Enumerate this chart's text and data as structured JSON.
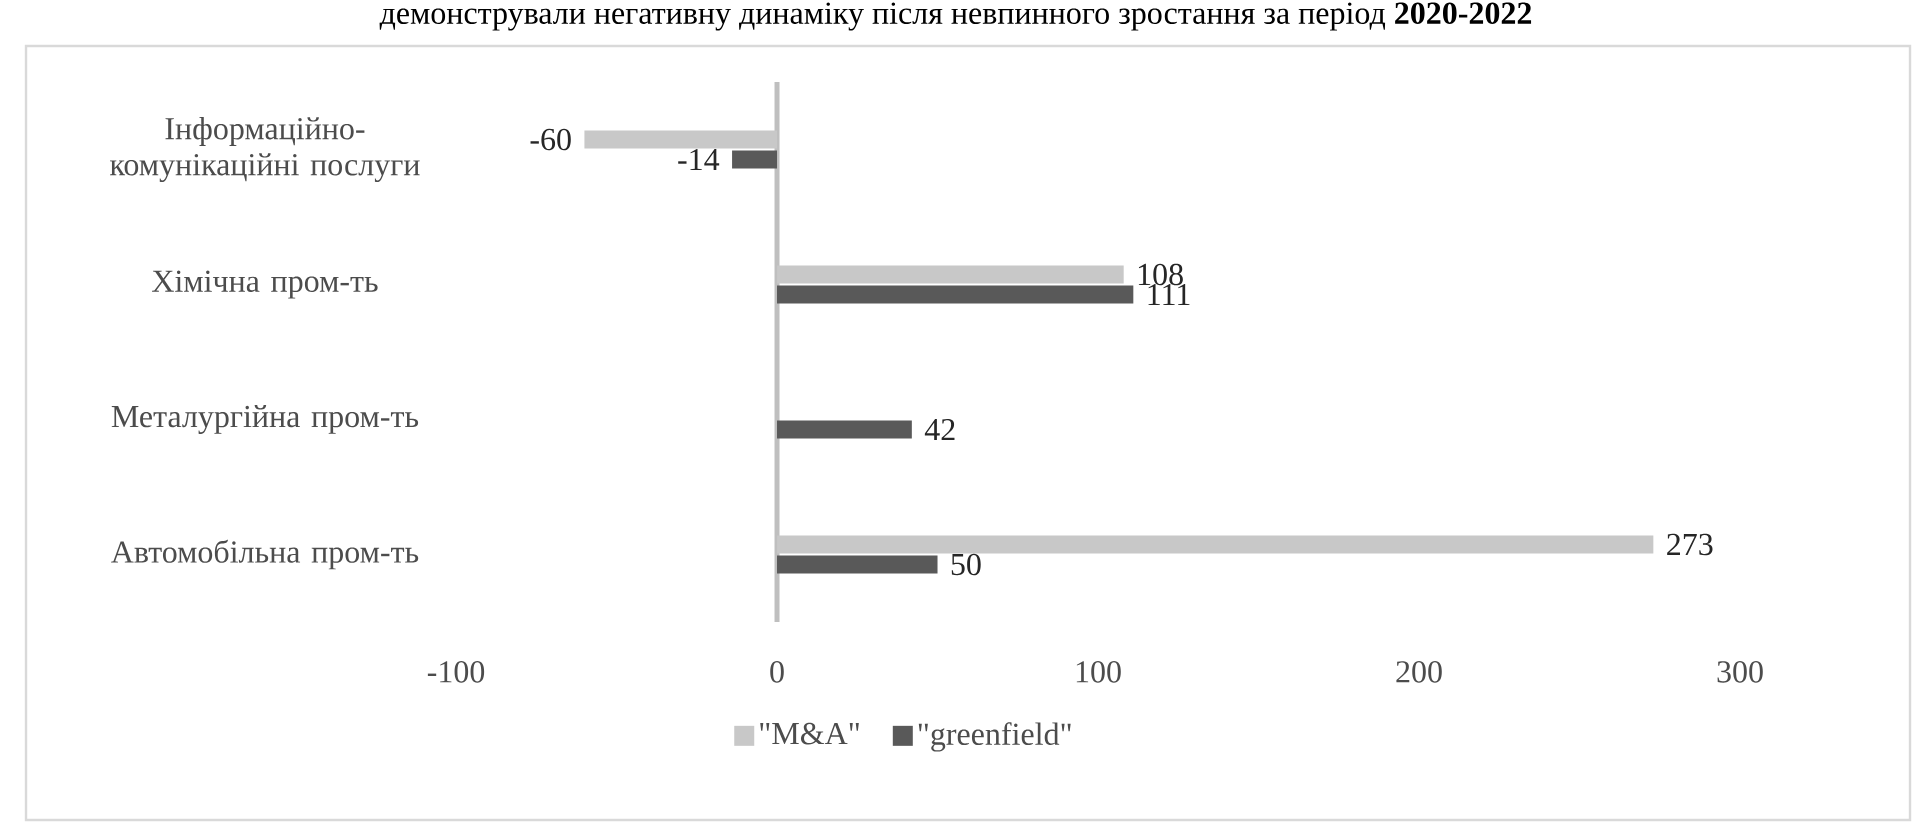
{
  "chart_data": {
    "type": "bar",
    "orientation": "horizontal",
    "annotations": [
      "демонстрували негативну динаміку після невпинного зростання за період **2020-2022**"
    ],
    "categories": [
      "Інформаційно-комунікаційні послуги",
      "Хімічна пром-ть",
      "Металургійна пром-ть",
      "Автомобільна пром-ть"
    ],
    "series": [
      {
        "name": "\"M&A\"",
        "color": "#c8c8c8",
        "values": [
          -60,
          108,
          null,
          273
        ]
      },
      {
        "name": "\"greenfield\"",
        "color": "#595959",
        "values": [
          -14,
          111,
          42,
          50
        ]
      }
    ],
    "xlim": [
      -100,
      300
    ],
    "xticks": [
      -100,
      0,
      100,
      200,
      300
    ],
    "data_labels": true,
    "legend": "bottom"
  }
}
